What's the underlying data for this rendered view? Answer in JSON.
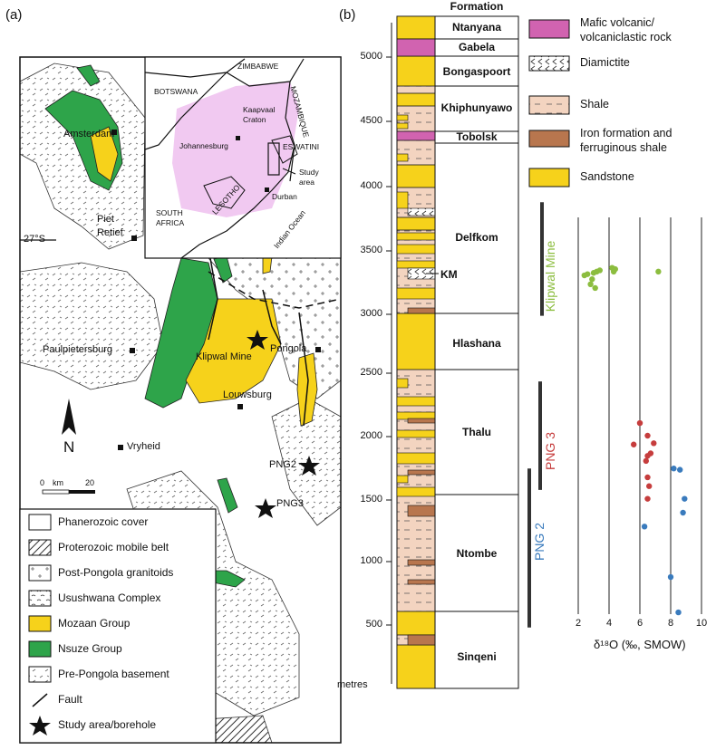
{
  "panels": {
    "a_label": "(a)",
    "b_label": "(b)"
  },
  "colors": {
    "mozaan": "#f6d21b",
    "nsuze": "#2ea44a",
    "sandstone": "#f6d21b",
    "shale": "#f3d4c0",
    "iron": "#b8764e",
    "mafic": "#d163b0",
    "craton": "#f1c9f1",
    "klipwal": "#8cbd3f",
    "png3": "#c63d3d",
    "png2": "#3a7bbd"
  },
  "map": {
    "latitude_label": "27°S",
    "north_label": "N",
    "scale": {
      "zero": "0",
      "unit": "km",
      "max": "20"
    },
    "places": {
      "amsterdam": "Amsterdam",
      "piet_retief_1": "Piet",
      "piet_retief_2": "Retief",
      "paulpietersburg": "Paulpietersburg",
      "klipwal_mine": "Klipwal Mine",
      "pongola": "Pongola",
      "louwsburg": "Louwsburg",
      "vryheid": "Vryheid",
      "png2": "PNG2",
      "png3": "PNG3"
    },
    "inset": {
      "zimbabwe": "ZIMBABWE",
      "botswana": "BOTSWANA",
      "mozambique": "MOZAMBIQUE",
      "kaapvaal_1": "Kaapvaal",
      "kaapvaal_2": "Craton",
      "johannesburg": "Johannesburg",
      "eswatini": "ESWATINI",
      "study_area_1": "Study",
      "study_area_2": "area",
      "lesotho": "LESOTHO",
      "durban": "Durban",
      "south_africa_1": "SOUTH",
      "south_africa_2": "AFRICA",
      "indian_ocean": "Indian Ocean"
    },
    "legend": [
      "Phanerozoic cover",
      "Proterozoic mobile belt",
      "Post-Pongola granitoids",
      "Usushwana Complex",
      "Mozaan Group",
      "Nsuze Group",
      "Pre-Pongola basement",
      "Fault",
      "Study area/borehole"
    ]
  },
  "column": {
    "header": "Formation",
    "units_label": "metres",
    "depth_ticks": [
      "5000",
      "4500",
      "4000",
      "3500",
      "3000",
      "2500",
      "2000",
      "1500",
      "1000",
      "500"
    ],
    "formations": [
      "Ntanyana",
      "Gabela",
      "Bongaspoort",
      "Khiphunyawo",
      "Tobolsk",
      "Delfkom",
      "Hlashana",
      "Thalu",
      "Ntombe",
      "Sinqeni"
    ],
    "km_label": "KM"
  },
  "lith_legend": [
    {
      "line1": "Mafic volcanic/",
      "line2": "volcaniclastic rock"
    },
    {
      "line1": "Diamictite",
      "line2": ""
    },
    {
      "line1": "Shale",
      "line2": ""
    },
    {
      "line1": "Iron formation and",
      "line2": "ferruginous shale"
    },
    {
      "line1": "Sandstone",
      "line2": ""
    }
  ],
  "chart_data": {
    "type": "scatter",
    "xlabel": "δ¹⁸O (‰, SMOW)",
    "ylabel": "metres",
    "xlim": [
      2,
      10
    ],
    "x_ticks": [
      "2",
      "4",
      "6",
      "8",
      "10"
    ],
    "ylim": [
      0,
      5300
    ],
    "series": [
      {
        "name": "Klipwal Mine",
        "color": "#8cbd3f",
        "range": [
          2950,
          3850
        ],
        "points": [
          [
            2.4,
            3270
          ],
          [
            2.6,
            3280
          ],
          [
            2.9,
            3240
          ],
          [
            3.0,
            3290
          ],
          [
            3.2,
            3300
          ],
          [
            3.4,
            3310
          ],
          [
            2.8,
            3200
          ],
          [
            3.1,
            3170
          ],
          [
            4.2,
            3330
          ],
          [
            4.4,
            3320
          ],
          [
            4.3,
            3300
          ],
          [
            7.2,
            3300
          ]
        ]
      },
      {
        "name": "PNG 3",
        "color": "#c63d3d",
        "range": [
          1570,
          2430
        ],
        "points": [
          [
            6.0,
            2100
          ],
          [
            5.6,
            1930
          ],
          [
            6.5,
            2000
          ],
          [
            6.9,
            1940
          ],
          [
            6.7,
            1860
          ],
          [
            6.5,
            1840
          ],
          [
            6.4,
            1800
          ],
          [
            6.5,
            1670
          ],
          [
            6.6,
            1600
          ],
          [
            6.5,
            1500
          ]
        ]
      },
      {
        "name": "PNG 2",
        "color": "#3a7bbd",
        "range": [
          480,
          1740
        ],
        "points": [
          [
            8.2,
            1740
          ],
          [
            8.6,
            1730
          ],
          [
            8.9,
            1500
          ],
          [
            8.8,
            1390
          ],
          [
            6.3,
            1280
          ],
          [
            8.0,
            880
          ],
          [
            8.5,
            600
          ]
        ]
      }
    ]
  }
}
